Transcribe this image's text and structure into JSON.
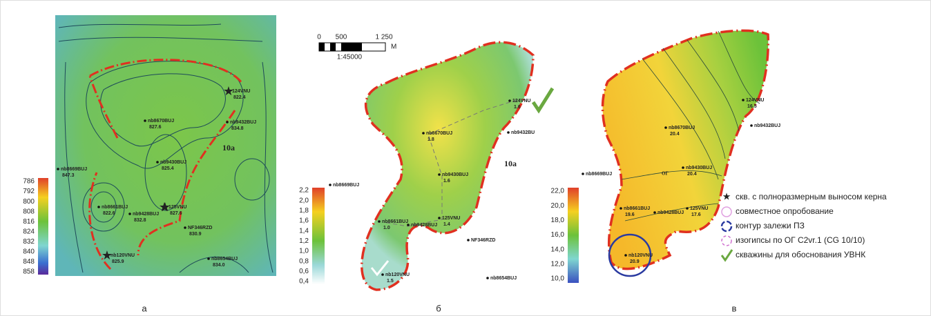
{
  "panels": [
    {
      "caption": "а",
      "colorbar": [
        "786",
        "792",
        "800",
        "808",
        "816",
        "824",
        "832",
        "840",
        "848",
        "858"
      ],
      "region_label": "10a",
      "wells": [
        {
          "name": "124VNU",
          "value": "822.4"
        },
        {
          "name": "nb8670BUJ",
          "value": "827.6"
        },
        {
          "name": "nb9432BUJ",
          "value": "834.8"
        },
        {
          "name": "nb9430BUJ",
          "value": "825.4"
        },
        {
          "name": "nb8669BUJ",
          "value": "847.3"
        },
        {
          "name": "nb8661BUJ",
          "value": "822.6"
        },
        {
          "name": "nb9428BUJ",
          "value": "832.8"
        },
        {
          "name": "125VNU",
          "value": "827.6"
        },
        {
          "name": "NF346RZD",
          "value": "830.9"
        },
        {
          "name": "nb120VNU",
          "value": "825.9"
        },
        {
          "name": "nb8654BUJ",
          "value": "834.0"
        }
      ]
    },
    {
      "caption": "б",
      "colorbar": [
        "2,2",
        "2,0",
        "1,8",
        "1,6",
        "1,4",
        "1,2",
        "1,0",
        "0,8",
        "0,6",
        "0,4"
      ],
      "region_label": "10a",
      "wells": [
        {
          "name": "124VNU",
          "value": "1.6"
        },
        {
          "name": "nb8670BUJ",
          "value": "1.8"
        },
        {
          "name": "nb9432BU"
        },
        {
          "name": "nb9430BUJ",
          "value": "1.6"
        },
        {
          "name": "nb8669BUJ"
        },
        {
          "name": "nb8661BUJ",
          "value": "1.0"
        },
        {
          "name": "nb9428BUJ"
        },
        {
          "name": "125VNU",
          "value": "1.4"
        },
        {
          "name": "NF346RZD"
        },
        {
          "name": "nb120VNU",
          "value": "1.5"
        },
        {
          "name": "nb8654BUJ"
        }
      ]
    },
    {
      "caption": "в",
      "colorbar": [
        "22,0",
        "20,0",
        "18,0",
        "16,0",
        "14,0",
        "12,0",
        "10,0"
      ],
      "region_label": "ОГ",
      "wells": [
        {
          "name": "124VNU",
          "value": "16.5"
        },
        {
          "name": "nb8670BUJ",
          "value": "20.4"
        },
        {
          "name": "nb9432BUJ"
        },
        {
          "name": "nb9430BUJ",
          "value": "20.4"
        },
        {
          "name": "nb8669BUJ"
        },
        {
          "name": "nb8661BUJ",
          "value": "19.6"
        },
        {
          "name": "nb9428BUJ"
        },
        {
          "name": "125VNU",
          "value": "17.6"
        },
        {
          "name": "nb120VNU",
          "value": "20.9"
        }
      ]
    }
  ],
  "scale_bar": {
    "ticks": [
      "0",
      "500",
      "1 250"
    ],
    "unit": "М",
    "ratio": "1:45000"
  },
  "legend": [
    "скв. с полноразмерным выносом керна",
    "совместное опробование",
    "контур залежи ПЗ",
    "изогипсы по ОГ C2vr.1 (CG 10/10)",
    "скважины для обоснования УВНК"
  ]
}
